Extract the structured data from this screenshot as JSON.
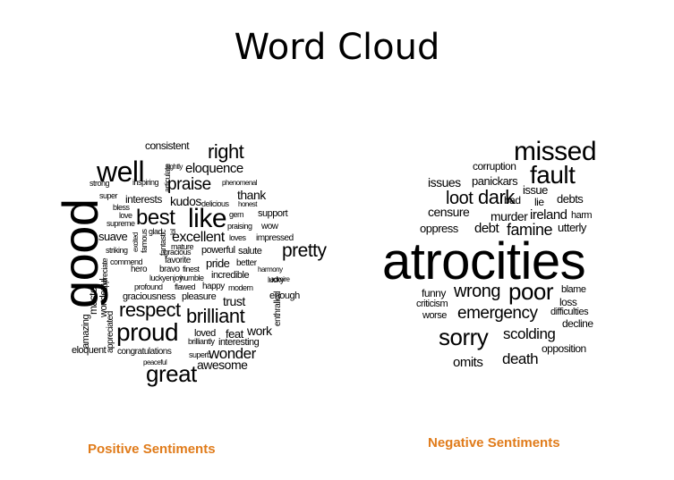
{
  "title": "Word Cloud",
  "positive": {
    "caption": "Positive  Sentiments",
    "words": [
      "good",
      "well",
      "like",
      "best",
      "proud",
      "great",
      "respect",
      "brilliant",
      "right",
      "praise",
      "excellent",
      "pretty",
      "eloquence",
      "wonder",
      "awesome",
      "thank",
      "trust",
      "work",
      "pride",
      "consistent",
      "kudos",
      "interests",
      "suave",
      "master",
      "wonderful",
      "appreciated",
      "amazing",
      "eloquent",
      "congratulations",
      "support",
      "wow",
      "impressed",
      "powerful",
      "salute",
      "better",
      "harmony",
      "lucky",
      "enough",
      "incredible",
      "happy",
      "modern",
      "gem",
      "honest",
      "delicious",
      "phenomenal",
      "admire",
      "enthralled",
      "finest",
      "humble",
      "flawed",
      "profound",
      "graciousness",
      "pleasure",
      "gracious",
      "favorite",
      "commend",
      "striking",
      "supreme",
      "bless",
      "love",
      "strong",
      "super",
      "inspiring",
      "rightly",
      "articulate",
      "glad",
      "fantastic",
      "famous",
      "feat",
      "loved",
      "brilliantly",
      "interesting",
      "superb",
      "peaceful",
      "praising",
      "loves",
      "mature",
      "hero",
      "bravo",
      "lucky",
      "enjoy",
      "appreciate",
      "excited",
      "lol"
    ]
  },
  "negative": {
    "caption": "Negative Sentiments",
    "words": [
      "atrocities",
      "missed",
      "fault",
      "poor",
      "sorry",
      "dark",
      "loot",
      "wrong",
      "famine",
      "emergency",
      "scolding",
      "death",
      "omits",
      "corruption",
      "panickars",
      "issues",
      "issue",
      "bad",
      "lie",
      "debts",
      "censure",
      "murder",
      "ireland",
      "harm",
      "oppress",
      "debt",
      "utterly",
      "funny",
      "blame",
      "criticism",
      "loss",
      "worse",
      "difficulties",
      "decline",
      "opposition"
    ]
  }
}
